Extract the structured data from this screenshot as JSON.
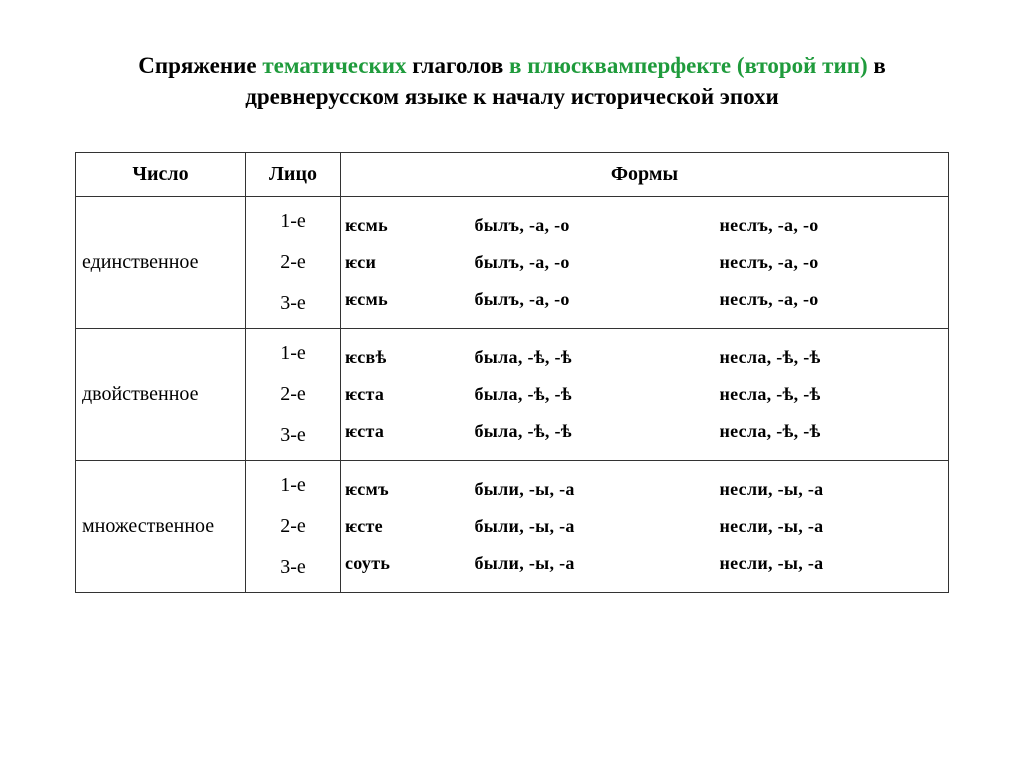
{
  "title": {
    "p1": "Спряжение ",
    "p2": "тематических ",
    "p3": "глаголов ",
    "p4": "в плюсквамперфекте (второй тип)",
    "p5": "  в древнерусском языке к началу исторической эпохи"
  },
  "headers": {
    "number": "Число",
    "person": "Лицо",
    "forms": "Формы"
  },
  "rows": [
    {
      "number": "единственное",
      "persons": [
        "1-е",
        "2-е",
        "3-е"
      ],
      "aux": [
        "ѥсмь",
        "ѥси",
        "ѥсмь"
      ],
      "byl": [
        "былъ, -а, -о",
        "былъ, -а, -о",
        "былъ, -а, -о"
      ],
      "nesl": [
        "неслъ, -а, -о",
        "неслъ, -а, -о",
        "неслъ, -а, -о"
      ]
    },
    {
      "number": "двойственное",
      "persons": [
        "1-е",
        "2-е",
        "3-е"
      ],
      "aux": [
        "ѥсвѣ",
        "ѥста",
        "ѥста"
      ],
      "byl": [
        "была, -ѣ, -ѣ",
        "была, -ѣ, -ѣ",
        "была,  -ѣ, -ѣ"
      ],
      "nesl": [
        "несла, -ѣ, -ѣ",
        "несла, -ѣ, -ѣ",
        "несла,  -ѣ, -ѣ"
      ]
    },
    {
      "number": "множественное",
      "persons": [
        "1-е",
        "2-е",
        "3-е"
      ],
      "aux": [
        "ѥсмъ",
        "ѥсте",
        "соуть"
      ],
      "byl": [
        "были, -ы, -а",
        "были, -ы, -а",
        "были,  -ы, -а"
      ],
      "nesl": [
        "несли, -ы, -а",
        "несли, -ы, -а",
        "несли,  -ы, -а"
      ]
    }
  ]
}
